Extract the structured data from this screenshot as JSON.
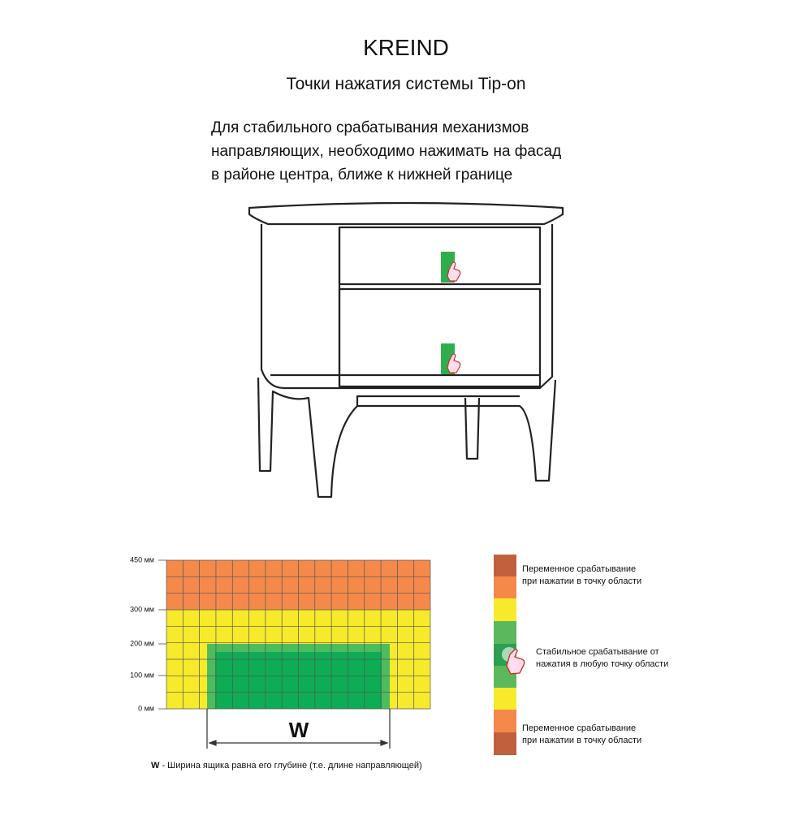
{
  "header": {
    "brand": "KREIND",
    "subtitle": "Точки нажатия системы Tip-on"
  },
  "description": {
    "lines": [
      "Для стабильного срабатывания механизмов",
      "направляющих, необходимо нажимать на фасад",
      "в районе центра, ближе к нижней границе"
    ]
  },
  "scale": {
    "labels": [
      "450 мм",
      "300 мм",
      "200 мм",
      "100 мм",
      "0 мм"
    ]
  },
  "diagram": {
    "width_label": "W"
  },
  "footnote": {
    "key": "W",
    "text": "- Ширина ящика равна его глубине (т.е. длине направляющей)"
  },
  "legend": {
    "items": [
      {
        "lines": [
          "Переменное срабатывание",
          "при нажатии в точку области"
        ]
      },
      {
        "lines": [
          "Стабильное срабатывание от",
          "нажатия в любую точку области"
        ]
      },
      {
        "lines": [
          "Переменное срабатывание",
          "при нажатии в точку области"
        ]
      }
    ]
  }
}
